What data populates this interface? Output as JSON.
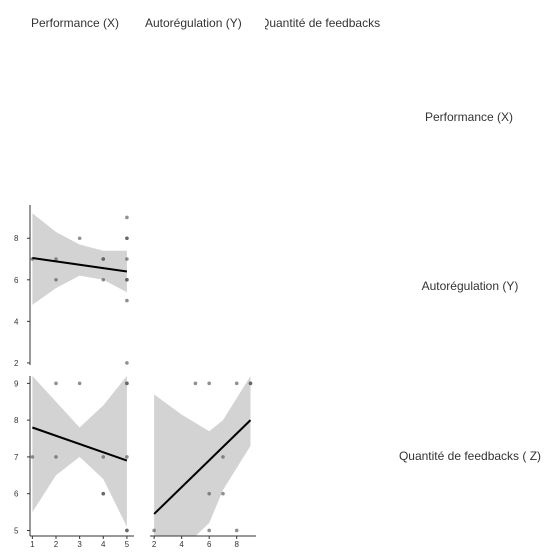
{
  "chart_data": {
    "type": "scatter",
    "title": "",
    "column_headers": [
      "Performance (X)",
      "Autorégulation (Y)",
      "Quantité de feedbacks"
    ],
    "row_labels": [
      "Performance (X)",
      "Autorégulation (Y)",
      "Quantité de feedbacks ( Z)"
    ],
    "panels": [
      {
        "id": "perf-vs-autoreg",
        "row": 1,
        "col": 0,
        "x_ticks": [],
        "y_ticks": [
          2,
          4,
          6,
          8
        ],
        "xlim": [
          0.9,
          5.3
        ],
        "ylim": [
          1.9,
          9.6
        ],
        "points": [
          {
            "x": 1,
            "y": 7
          },
          {
            "x": 2,
            "y": 7
          },
          {
            "x": 2,
            "y": 6
          },
          {
            "x": 3,
            "y": 8
          },
          {
            "x": 4,
            "y": 7
          },
          {
            "x": 4,
            "y": 7
          },
          {
            "x": 4,
            "y": 6
          },
          {
            "x": 5,
            "y": 9
          },
          {
            "x": 5,
            "y": 8
          },
          {
            "x": 5,
            "y": 8
          },
          {
            "x": 5,
            "y": 7
          },
          {
            "x": 5,
            "y": 6
          },
          {
            "x": 5,
            "y": 6
          },
          {
            "x": 5,
            "y": 5
          },
          {
            "x": 5,
            "y": 2
          }
        ],
        "fit": {
          "x": [
            1,
            5
          ],
          "y": [
            7.05,
            6.4
          ]
        },
        "band": {
          "x": [
            1,
            2,
            3,
            4,
            5
          ],
          "upper": [
            9.2,
            8.3,
            7.7,
            7.4,
            7.4
          ],
          "lower": [
            4.8,
            5.6,
            6.2,
            6.0,
            5.4
          ]
        }
      },
      {
        "id": "perf-vs-feedbacks",
        "row": 2,
        "col": 0,
        "x_ticks": [
          1,
          2,
          3,
          4,
          5
        ],
        "y_ticks": [
          5,
          6,
          7,
          8,
          9
        ],
        "xlim": [
          0.9,
          5.3
        ],
        "ylim": [
          4.85,
          9.2
        ],
        "points": [
          {
            "x": 1,
            "y": 7
          },
          {
            "x": 2,
            "y": 9
          },
          {
            "x": 2,
            "y": 7
          },
          {
            "x": 3,
            "y": 9
          },
          {
            "x": 4,
            "y": 7
          },
          {
            "x": 4,
            "y": 6
          },
          {
            "x": 4,
            "y": 6
          },
          {
            "x": 5,
            "y": 9
          },
          {
            "x": 5,
            "y": 9
          },
          {
            "x": 5,
            "y": 7
          },
          {
            "x": 5,
            "y": 5
          },
          {
            "x": 5,
            "y": 5
          }
        ],
        "fit": {
          "x": [
            1,
            5
          ],
          "y": [
            7.8,
            6.9
          ]
        },
        "band": {
          "x": [
            1,
            2,
            3,
            4,
            5
          ],
          "upper": [
            9.2,
            8.5,
            7.8,
            8.4,
            9.2
          ],
          "lower": [
            5.5,
            6.5,
            7.0,
            6.4,
            5.1
          ]
        }
      },
      {
        "id": "autoreg-vs-feedbacks",
        "row": 2,
        "col": 1,
        "x_ticks": [
          2,
          4,
          6,
          8
        ],
        "y_ticks": [],
        "xlim": [
          1.7,
          9.4
        ],
        "ylim": [
          4.85,
          9.2
        ],
        "points": [
          {
            "x": 2,
            "y": 5
          },
          {
            "x": 5,
            "y": 9
          },
          {
            "x": 6,
            "y": 9
          },
          {
            "x": 6,
            "y": 6
          },
          {
            "x": 6,
            "y": 5
          },
          {
            "x": 7,
            "y": 7
          },
          {
            "x": 7,
            "y": 6
          },
          {
            "x": 8,
            "y": 9
          },
          {
            "x": 8,
            "y": 5
          },
          {
            "x": 9,
            "y": 9
          },
          {
            "x": 9,
            "y": 9
          }
        ],
        "fit": {
          "x": [
            2,
            9
          ],
          "y": [
            5.45,
            8.0
          ]
        },
        "band": {
          "x": [
            2,
            4,
            6,
            7,
            8,
            9
          ],
          "upper": [
            8.7,
            8.15,
            7.7,
            8.0,
            8.6,
            9.2
          ],
          "lower": [
            4.5,
            4.5,
            5.2,
            6.1,
            6.7,
            7.3
          ]
        }
      }
    ],
    "series": [
      {
        "values": []
      }
    ],
    "grid": false,
    "legend": "none",
    "colors": {
      "band": "#d3d3d3",
      "fit": "#000000",
      "points": "#555555",
      "text": "#333333"
    }
  }
}
